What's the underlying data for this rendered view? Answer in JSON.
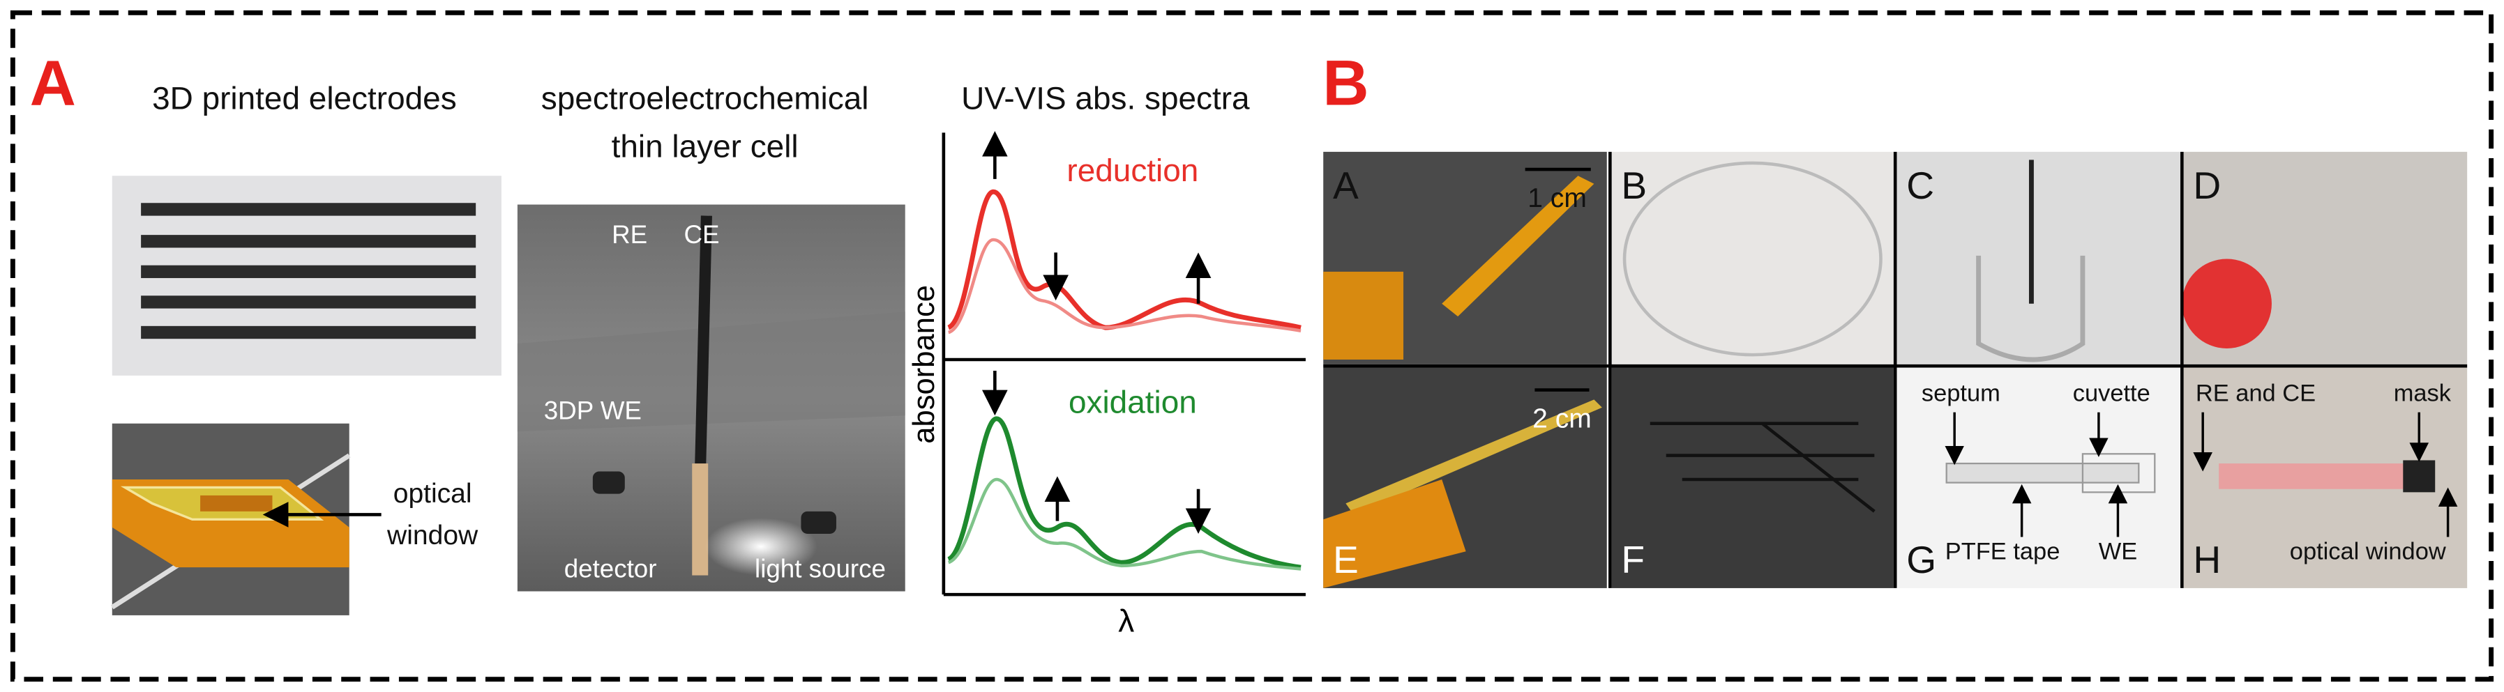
{
  "panel_a": {
    "label": "A",
    "electrodes": {
      "title": "3D printed electrodes",
      "annotation": [
        "optical",
        "window"
      ]
    },
    "cell": {
      "title": [
        "spectroelectrochemical",
        "thin layer cell"
      ],
      "labels": [
        "RE",
        "CE",
        "3DP WE",
        "detector",
        "light source"
      ]
    },
    "spectra": {
      "title": "UV-VIS abs. spectra",
      "top": "reduction",
      "bottom": "oxidation",
      "y_label": "absorbance",
      "x_label": "λ"
    }
  },
  "panel_b": {
    "label": "B",
    "photos": [
      {
        "letter": "A",
        "scale": "1 cm"
      },
      {
        "letter": "B"
      },
      {
        "letter": "C"
      },
      {
        "letter": "D"
      },
      {
        "letter": "E",
        "scale": "2 cm"
      },
      {
        "letter": "F"
      },
      {
        "letter": "G",
        "annotations": [
          "septum",
          "cuvette",
          "PTFE tape",
          "WE"
        ]
      },
      {
        "letter": "H",
        "annotations": [
          "RE and CE",
          "mask",
          "optical window"
        ]
      }
    ]
  }
}
